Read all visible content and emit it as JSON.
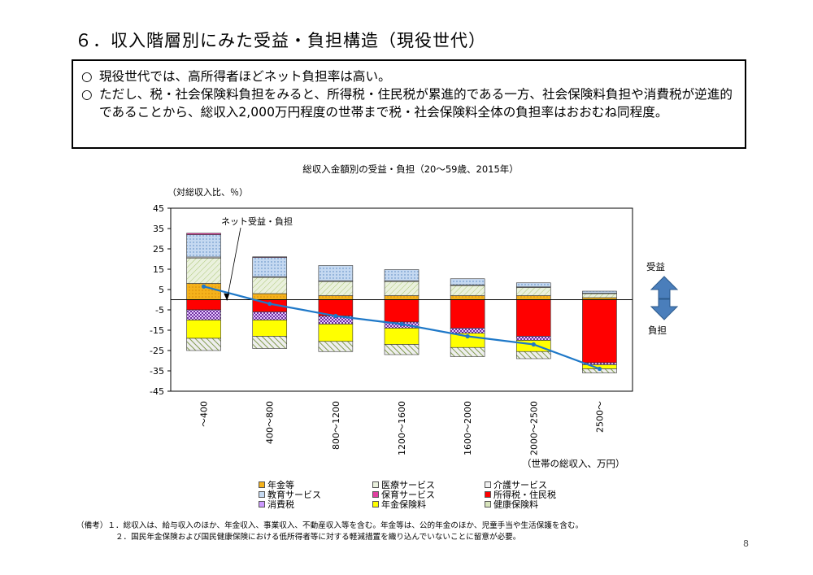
{
  "page": {
    "title": "６．収入階層別にみた受益・負担構造（現役世代）",
    "bullets": [
      "現役世代では、高所得者ほどネット負担率は高い。",
      "ただし、税・社会保険料負担をみると、所得税・住民税が累進的である一方、社会保険料負担や消費税が逆進的であることから、総収入2,000万円程度の世帯まで税・社会保険料全体の負担率はおおむね同程度。"
    ],
    "bullet_mark": "○",
    "notes": "（備考）１．総収入は、給与収入のほか、年金収入、事業収入、不動産収入等を含む。年金等は、公的年金のほか、児童手当や生活保護を含む。\n　　　　　２．国民年金保険および国民健康保険における低所得者等に対する軽減措置を織り込んでいないことに留意が必要。",
    "page_number": "8"
  },
  "chart_data": {
    "type": "bar",
    "stacked": true,
    "title": "総収入金額別の受益・負担（20～59歳、2015年）",
    "ylabel": "（対総収入比、％）",
    "xlabel": "（世帯の総収入、万円）",
    "ylim": [
      -45,
      45
    ],
    "yticks": [
      45,
      35,
      25,
      15,
      5,
      -5,
      -15,
      -25,
      -35,
      -45
    ],
    "categories": [
      "～400",
      "400～800",
      "800～1200",
      "1200～1600",
      "1600～2000",
      "2000～2500",
      "2500～"
    ],
    "benefit_label": "受益",
    "burden_label": "負担",
    "annotation": "ネット受益・負担",
    "series": [
      {
        "name": "年金等",
        "color": "#f5b21b",
        "pattern": "dots",
        "values": [
          8,
          3,
          2,
          2,
          2,
          2,
          1
        ]
      },
      {
        "name": "医療サービス",
        "color": "#eaf1dd",
        "pattern": "hatch-green",
        "values": [
          12.5,
          8,
          7,
          7,
          5,
          4,
          2
        ]
      },
      {
        "name": "介護サービス",
        "color": "#f2f2f2",
        "pattern": "none",
        "values": [
          0.5,
          0.3,
          0.3,
          0.3,
          0.3,
          0.3,
          0.2
        ]
      },
      {
        "name": "教育サービス",
        "color": "#c5d9f1",
        "pattern": "grid-blue",
        "values": [
          11,
          9.5,
          7.5,
          5.5,
          3,
          2,
          1
        ]
      },
      {
        "name": "保育サービス",
        "color": "#e040a0",
        "pattern": "none",
        "values": [
          0.7,
          0.3,
          0,
          0,
          0,
          0,
          0
        ]
      },
      {
        "name": "所得税・住民税",
        "color": "#ff0000",
        "pattern": "none",
        "values": [
          -5,
          -6,
          -8,
          -11,
          -14,
          -18,
          -31
        ]
      },
      {
        "name": "消費税",
        "color": "#cc99ff",
        "pattern": "checker",
        "values": [
          -5,
          -4,
          -4,
          -3,
          -2.5,
          -2,
          -1
        ]
      },
      {
        "name": "年金保険料",
        "color": "#ffff00",
        "pattern": "none",
        "values": [
          -9,
          -8,
          -8.5,
          -8,
          -7,
          -5.5,
          -2
        ]
      },
      {
        "name": "健康保険料",
        "color": "#d8e4bc",
        "pattern": "diag-dark",
        "values": [
          -6,
          -6,
          -5,
          -5,
          -4.5,
          -3.5,
          -2
        ]
      }
    ],
    "net_line": {
      "name": "ネット受益・負担",
      "color": "#1e78c8",
      "values": [
        6.5,
        -2,
        -8,
        -12,
        -18,
        -22,
        -34
      ]
    },
    "legend_order": [
      "年金等",
      "医療サービス",
      "介護サービス",
      "教育サービス",
      "保育サービス",
      "所得税・住民税",
      "消費税",
      "年金保険料",
      "健康保険料"
    ]
  }
}
